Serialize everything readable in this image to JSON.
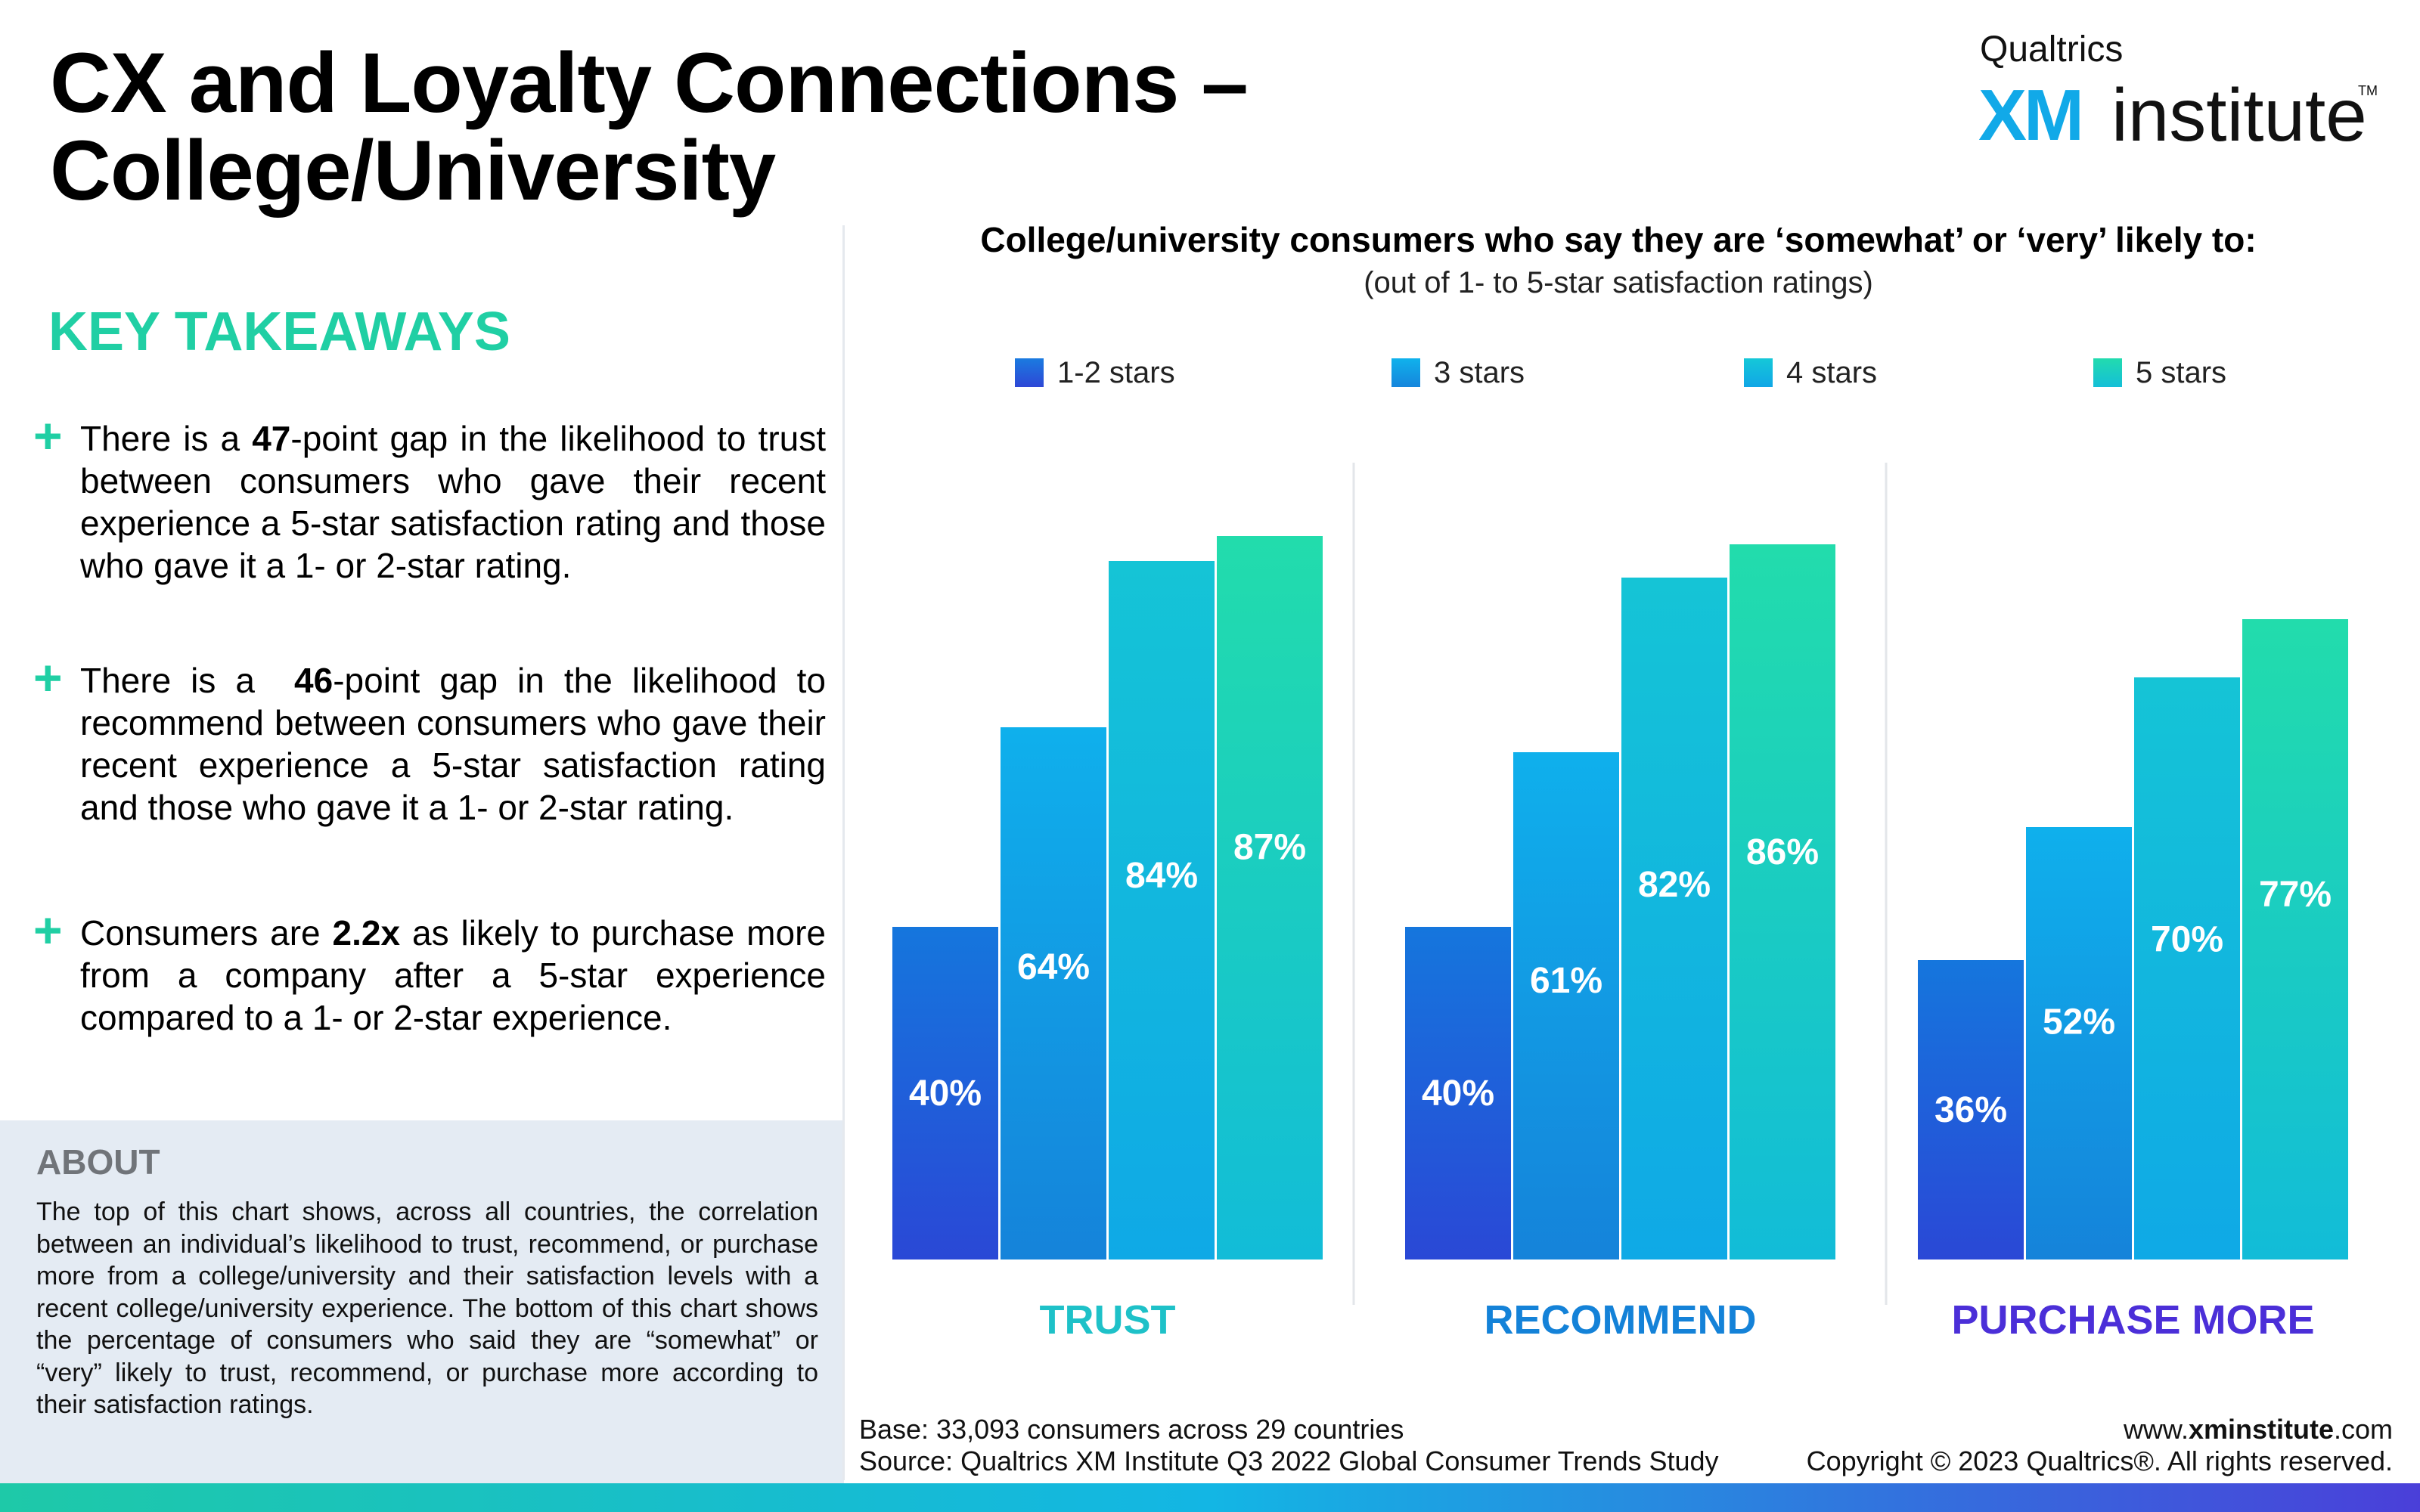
{
  "header": {
    "title_line1": "CX and Loyalty Connections –",
    "title_line2": "College/University"
  },
  "logo": {
    "brand": "Qualtrics",
    "xm": "XM",
    "institute": "institute",
    "tm": "TM"
  },
  "takeaways": {
    "heading": "KEY TAKEAWAYS",
    "items": [
      {
        "pre": "There is a ",
        "bold": "47",
        "post": "-point gap in the likelihood to trust between consumers who gave their recent experience a 5-star satisfaction rating and those who gave it a 1- or 2-star rating."
      },
      {
        "pre": "There is a  ",
        "bold": "46",
        "post": "-point gap in the likelihood to recommend between consumers who gave their recent experience a 5-star satisfaction rating and those who gave it a 1- or 2-star rating."
      },
      {
        "pre": "Consumers are ",
        "bold": "2.2x",
        "post": " as likely to purchase more from a company after a 5-star experience compared to a 1- or 2-star experience."
      }
    ]
  },
  "about": {
    "heading": "ABOUT",
    "text": "The top of this chart shows, across all countries, the correlation between an individual’s likelihood to trust, recommend, or purchase more from a college/university and their satisfaction levels with a recent college/university experience. The bottom of this chart shows the percentage of consumers who said they are “somewhat” or “very” likely to trust, recommend, or purchase more according to their satisfaction ratings."
  },
  "chart_data": {
    "type": "bar",
    "title": "College/university consumers who say they are ‘somewhat’ or ‘very’ likely to:",
    "subtitle": "(out of 1- to 5-star satisfaction ratings)",
    "categories": [
      "TRUST",
      "RECOMMEND",
      "PURCHASE MORE"
    ],
    "category_colors": [
      "#1ec1c8",
      "#1482d8",
      "#4b2fd8"
    ],
    "series": [
      {
        "name": "1-2 stars",
        "values": [
          40,
          40,
          36
        ],
        "labels": [
          "40%",
          "40%",
          "36%"
        ],
        "color": "#1e6fde"
      },
      {
        "name": "3 stars",
        "values": [
          64,
          61,
          52
        ],
        "labels": [
          "64%",
          "61%",
          "52%"
        ],
        "color": "#10a6ea"
      },
      {
        "name": "4 stars",
        "values": [
          84,
          82,
          70
        ],
        "labels": [
          "84%",
          "82%",
          "70%"
        ],
        "color": "#13bfdf"
      },
      {
        "name": "5 stars",
        "values": [
          87,
          86,
          77
        ],
        "labels": [
          "87%",
          "86%",
          "77%"
        ],
        "color": "#20d8ae"
      }
    ],
    "ylim": [
      0,
      100
    ],
    "grid": false,
    "legend_position": "top"
  },
  "footer": {
    "base": "Base: 33,093 consumers across 29 countries",
    "source": "Source: Qualtrics XM Institute Q3 2022 Global Consumer Trends Study",
    "web_pre": "www.",
    "web_bold": "xminstitute",
    "web_post": ".com",
    "copyright": "Copyright © 2023 Qualtrics®. All rights reserved."
  }
}
